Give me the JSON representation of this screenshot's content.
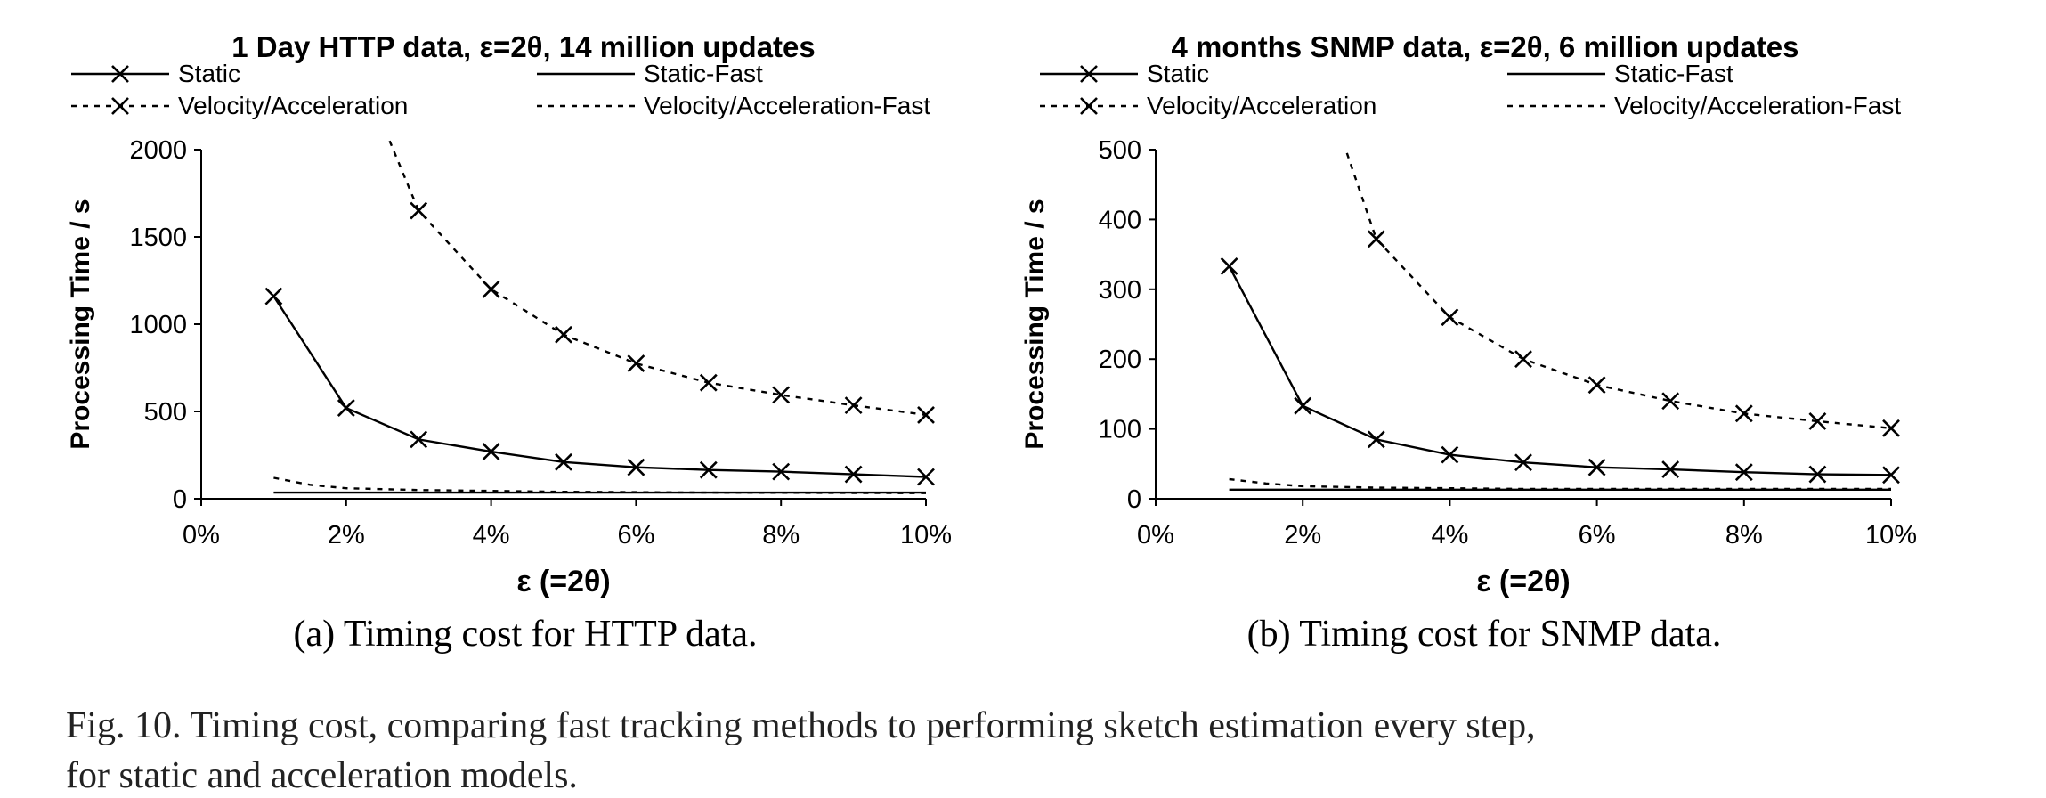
{
  "figure": {
    "caption_line1": "Fig. 10.    Timing cost, comparing fast tracking methods to performing sketch estimation every step,",
    "caption_line2": "for static and acceleration models."
  },
  "series_styles": {
    "Static": {
      "dash": "solid",
      "marker": true,
      "color": "#000000"
    },
    "Static-Fast": {
      "dash": "solid",
      "marker": false,
      "color": "#000000"
    },
    "Velocity/Acceleration": {
      "dash": "dotted",
      "marker": true,
      "color": "#000000"
    },
    "Velocity/Acceleration-Fast": {
      "dash": "dotted",
      "marker": false,
      "color": "#000000"
    }
  },
  "chart_data": [
    {
      "type": "line",
      "title": "1 Day HTTP data, ε=2θ, 14 million updates",
      "subtitle": "(a)  Timing cost for HTTP data.",
      "xlabel": "ε (=2θ)",
      "ylabel": "Processing Time / s",
      "xlim": [
        0,
        10
      ],
      "ylim": [
        0,
        2000
      ],
      "xticks": [
        0,
        2,
        4,
        6,
        8,
        10
      ],
      "xtick_labels": [
        "0%",
        "2%",
        "4%",
        "6%",
        "8%",
        "10%"
      ],
      "yticks": [
        0,
        500,
        1000,
        1500,
        2000
      ],
      "ytick_labels": [
        "0",
        "500",
        "1000",
        "1500",
        "2000"
      ],
      "grid": false,
      "legend_position": "top",
      "series": [
        {
          "name": "Static",
          "x": [
            1,
            2,
            3,
            4,
            5,
            6,
            7,
            8,
            9,
            10
          ],
          "values": [
            1160,
            520,
            340,
            270,
            210,
            180,
            165,
            155,
            140,
            125
          ]
        },
        {
          "name": "Static-Fast",
          "x": [
            1,
            2,
            3,
            4,
            5,
            6,
            7,
            8,
            9,
            10
          ],
          "values": [
            35,
            35,
            35,
            35,
            35,
            35,
            35,
            35,
            35,
            35
          ]
        },
        {
          "name": "Velocity/Acceleration",
          "x": [
            2.6,
            3,
            4,
            5,
            6,
            7,
            8,
            9,
            10
          ],
          "values": [
            2050,
            1650,
            1200,
            940,
            775,
            665,
            595,
            535,
            480
          ]
        },
        {
          "name": "Velocity/Acceleration-Fast",
          "x": [
            1,
            1.5,
            2,
            3,
            4,
            5,
            6,
            7,
            8,
            9,
            10
          ],
          "values": [
            120,
            80,
            60,
            50,
            45,
            40,
            38,
            35,
            34,
            33,
            32
          ]
        }
      ]
    },
    {
      "type": "line",
      "title": "4 months SNMP data, ε=2θ, 6 million updates",
      "subtitle": "(b)  Timing cost for SNMP data.",
      "xlabel": "ε (=2θ)",
      "ylabel": "Processing Time / s",
      "xlim": [
        0,
        10
      ],
      "ylim": [
        0,
        500
      ],
      "xticks": [
        0,
        2,
        4,
        6,
        8,
        10
      ],
      "xtick_labels": [
        "0%",
        "2%",
        "4%",
        "6%",
        "8%",
        "10%"
      ],
      "yticks": [
        0,
        100,
        200,
        300,
        400,
        500
      ],
      "ytick_labels": [
        "0",
        "100",
        "200",
        "300",
        "400",
        "500"
      ],
      "grid": false,
      "legend_position": "top",
      "series": [
        {
          "name": "Static",
          "x": [
            1,
            2,
            3,
            4,
            5,
            6,
            7,
            8,
            9,
            10
          ],
          "values": [
            333,
            133,
            85,
            63,
            52,
            45,
            42,
            38,
            35,
            34
          ]
        },
        {
          "name": "Static-Fast",
          "x": [
            1,
            2,
            3,
            4,
            5,
            6,
            7,
            8,
            9,
            10
          ],
          "values": [
            13,
            13,
            13,
            13,
            13,
            13,
            13,
            13,
            13,
            13
          ]
        },
        {
          "name": "Velocity/Acceleration",
          "x": [
            2.6,
            3,
            4,
            5,
            6,
            7,
            8,
            9,
            10
          ],
          "values": [
            495,
            372,
            260,
            200,
            163,
            140,
            122,
            111,
            101
          ]
        },
        {
          "name": "Velocity/Acceleration-Fast",
          "x": [
            1,
            1.5,
            2,
            3,
            4,
            5,
            6,
            7,
            8,
            9,
            10
          ],
          "values": [
            28,
            22,
            18,
            16,
            15,
            14,
            14,
            14,
            14,
            14,
            14
          ]
        }
      ]
    }
  ]
}
